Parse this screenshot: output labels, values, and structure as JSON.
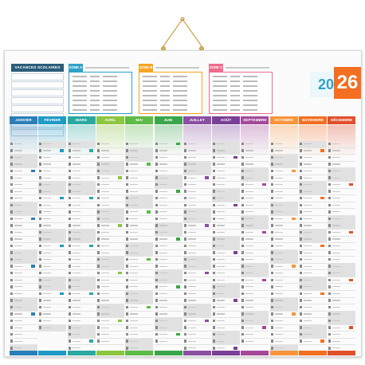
{
  "header": {
    "vacation_title": "VACANCES SCOLAIRES",
    "vacation_items": [
      "",
      "",
      "",
      "",
      "",
      "",
      "",
      ""
    ],
    "zones": [
      {
        "tag": "ZONE A",
        "color": "#2ea3c7",
        "lines": 8
      },
      {
        "tag": "ZONE B",
        "color": "#f5a623",
        "lines": 8
      },
      {
        "tag": "ZONE C",
        "color": "#ef6b8a",
        "lines": 8
      }
    ],
    "year_prefix": "20",
    "year_suffix": "26",
    "year_prefix_color": "#2ea3c7",
    "year_suffix_color": "#f36f21"
  },
  "months": [
    {
      "name": "JANVIER",
      "color": "#2b7fb8"
    },
    {
      "name": "FÉVRIER",
      "color": "#1f9ac4"
    },
    {
      "name": "MARS",
      "color": "#2ba9a0"
    },
    {
      "name": "AVRIL",
      "color": "#8cc63f"
    },
    {
      "name": "MAI",
      "color": "#5dbb46"
    },
    {
      "name": "JUIN",
      "color": "#3aa64a"
    },
    {
      "name": "JUILLET",
      "color": "#8a4fa3"
    },
    {
      "name": "AOÛT",
      "color": "#7a3f97"
    },
    {
      "name": "SEPTEMBRE",
      "color": "#a4499a"
    },
    {
      "name": "OCTOBRE",
      "color": "#f7943c"
    },
    {
      "name": "NOVEMBRE",
      "color": "#f36f21"
    },
    {
      "name": "DÉCEMBRE",
      "color": "#e0502b"
    }
  ],
  "calendar": {
    "days_per_month": [
      31,
      28,
      31,
      30,
      31,
      30,
      31,
      31,
      30,
      31,
      30,
      31
    ],
    "first_weekday": [
      3,
      6,
      6,
      2,
      4,
      0,
      2,
      5,
      1,
      3,
      6,
      1
    ]
  },
  "icons": {
    "hanger": "hanger-cord-icon"
  }
}
